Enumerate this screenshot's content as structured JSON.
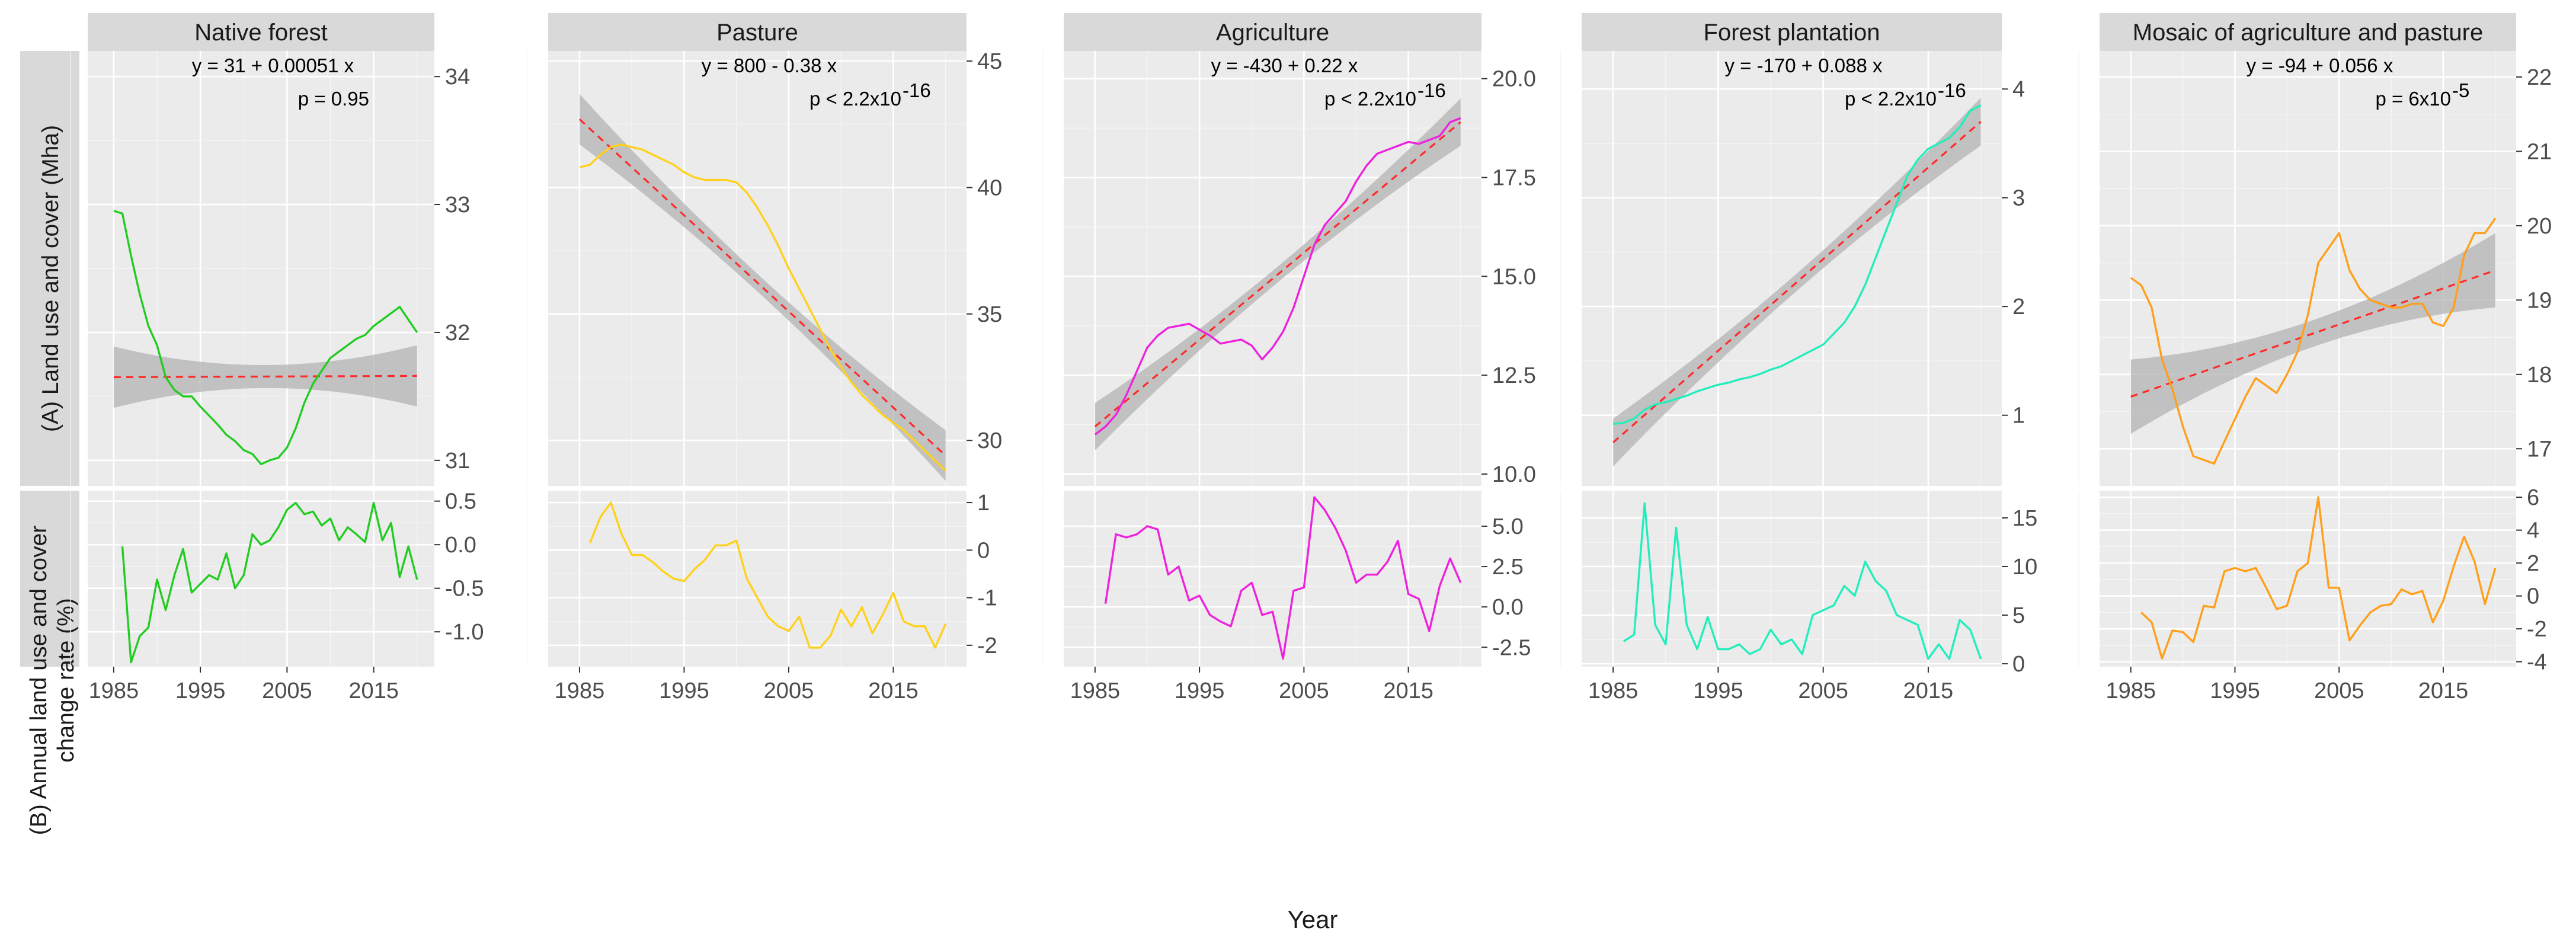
{
  "chart_data": {
    "type": "line",
    "xlabel": "Year",
    "row_labels": {
      "A": "(A) Land use and cover (Mha)",
      "B_line1": "(B) Annual land use and cover",
      "B_line2": "change rate (%)"
    },
    "x_ticks": [
      1985,
      1995,
      2005,
      2015
    ],
    "xlim": [
      1982,
      2022
    ],
    "grid": true,
    "panels": [
      {
        "name": "Native forest",
        "color": "#22cc22",
        "equation": "y = 31 + 0.00051 x",
        "p_prefix": "p = 0.95",
        "p_sup": "",
        "cover": {
          "ylim": [
            30.8,
            34.2
          ],
          "ticks": [
            "31",
            "32",
            "33",
            "34"
          ],
          "tick_values": [
            31,
            32,
            33,
            34
          ],
          "x": [
            1985,
            1986,
            1987,
            1988,
            1989,
            1990,
            1991,
            1992,
            1993,
            1994,
            1995,
            1996,
            1997,
            1998,
            1999,
            2000,
            2001,
            2002,
            2003,
            2004,
            2005,
            2006,
            2007,
            2008,
            2009,
            2010,
            2011,
            2012,
            2013,
            2014,
            2015,
            2016,
            2017,
            2018,
            2019,
            2020
          ],
          "values": [
            32.95,
            32.93,
            32.6,
            32.3,
            32.05,
            31.9,
            31.65,
            31.55,
            31.5,
            31.5,
            31.42,
            31.35,
            31.28,
            31.2,
            31.15,
            31.08,
            31.05,
            30.97,
            31.0,
            31.02,
            31.1,
            31.25,
            31.45,
            31.6,
            31.7,
            31.8,
            31.85,
            31.9,
            31.95,
            31.98,
            32.05,
            32.1,
            32.15,
            32.2,
            32.1,
            32.0
          ],
          "trend": {
            "start": 31.65,
            "end": 31.66,
            "band_hw_edge": 0.24,
            "band_hw_mid": 0.09
          }
        },
        "rate": {
          "ylim": [
            -1.4,
            0.62
          ],
          "ticks": [
            "-1.0",
            "-0.5",
            "0.0",
            "0.5"
          ],
          "tick_values": [
            -1.0,
            -0.5,
            0.0,
            0.5
          ],
          "x": [
            1986,
            1987,
            1988,
            1989,
            1990,
            1991,
            1992,
            1993,
            1994,
            1995,
            1996,
            1997,
            1998,
            1999,
            2000,
            2001,
            2002,
            2003,
            2004,
            2005,
            2006,
            2007,
            2008,
            2009,
            2010,
            2011,
            2012,
            2013,
            2014,
            2015,
            2016,
            2017,
            2018,
            2019,
            2020
          ],
          "values": [
            -0.02,
            -1.35,
            -1.05,
            -0.95,
            -0.4,
            -0.75,
            -0.35,
            -0.05,
            -0.55,
            -0.45,
            -0.35,
            -0.4,
            -0.1,
            -0.5,
            -0.35,
            0.12,
            0.0,
            0.05,
            0.2,
            0.4,
            0.48,
            0.35,
            0.38,
            0.22,
            0.3,
            0.05,
            0.2,
            0.12,
            0.03,
            0.48,
            0.05,
            0.25,
            -0.37,
            -0.02,
            -0.4
          ]
        }
      },
      {
        "name": "Pasture",
        "color": "#ffd11a",
        "equation": "y = 800 - 0.38 x",
        "p_prefix": "p < 2.2x10",
        "p_sup": "-16",
        "cover": {
          "ylim": [
            28.2,
            45.4
          ],
          "ticks": [
            "30",
            "35",
            "40",
            "45"
          ],
          "tick_values": [
            30,
            35,
            40,
            45
          ],
          "x": [
            1985,
            1986,
            1987,
            1988,
            1989,
            1990,
            1991,
            1992,
            1993,
            1994,
            1995,
            1996,
            1997,
            1998,
            1999,
            2000,
            2001,
            2002,
            2003,
            2004,
            2005,
            2006,
            2007,
            2008,
            2009,
            2010,
            2011,
            2012,
            2013,
            2014,
            2015,
            2016,
            2017,
            2018,
            2019,
            2020
          ],
          "values": [
            40.8,
            40.9,
            41.3,
            41.6,
            41.7,
            41.6,
            41.5,
            41.3,
            41.1,
            40.9,
            40.6,
            40.4,
            40.3,
            40.3,
            40.3,
            40.2,
            39.8,
            39.2,
            38.5,
            37.7,
            36.8,
            36.0,
            35.2,
            34.4,
            33.6,
            32.9,
            32.3,
            31.8,
            31.4,
            31.0,
            30.7,
            30.4,
            30.0,
            29.6,
            29.2,
            28.8
          ],
          "trend": {
            "start": 42.7,
            "end": 29.4,
            "band_hw_edge": 1.0,
            "band_hw_mid": 0.35
          }
        },
        "rate": {
          "ylim": [
            -2.45,
            1.25
          ],
          "ticks": [
            "-2",
            "-1",
            "0",
            "1"
          ],
          "tick_values": [
            -2,
            -1,
            0,
            1
          ],
          "x": [
            1986,
            1987,
            1988,
            1989,
            1990,
            1991,
            1992,
            1993,
            1994,
            1995,
            1996,
            1997,
            1998,
            1999,
            2000,
            2001,
            2002,
            2003,
            2004,
            2005,
            2006,
            2007,
            2008,
            2009,
            2010,
            2011,
            2012,
            2013,
            2014,
            2015,
            2016,
            2017,
            2018,
            2019,
            2020
          ],
          "values": [
            0.15,
            0.7,
            1.0,
            0.35,
            -0.1,
            -0.1,
            -0.25,
            -0.45,
            -0.6,
            -0.65,
            -0.4,
            -0.2,
            0.1,
            0.1,
            0.2,
            -0.6,
            -1.0,
            -1.4,
            -1.6,
            -1.7,
            -1.4,
            -2.05,
            -2.05,
            -1.8,
            -1.25,
            -1.6,
            -1.2,
            -1.75,
            -1.35,
            -0.9,
            -1.5,
            -1.6,
            -1.6,
            -2.05,
            -1.55
          ]
        }
      },
      {
        "name": "Agriculture",
        "color": "#ee22dd",
        "equation": "y = -430 + 0.22 x",
        "p_prefix": "p < 2.2x10",
        "p_sup": "-16",
        "cover": {
          "ylim": [
            9.7,
            20.7
          ],
          "ticks": [
            "10.0",
            "12.5",
            "15.0",
            "17.5",
            "20.0"
          ],
          "tick_values": [
            10.0,
            12.5,
            15.0,
            17.5,
            20.0
          ],
          "x": [
            1985,
            1986,
            1987,
            1988,
            1989,
            1990,
            1991,
            1992,
            1993,
            1994,
            1995,
            1996,
            1997,
            1998,
            1999,
            2000,
            2001,
            2002,
            2003,
            2004,
            2005,
            2006,
            2007,
            2008,
            2009,
            2010,
            2011,
            2012,
            2013,
            2014,
            2015,
            2016,
            2017,
            2018,
            2019,
            2020
          ],
          "values": [
            11.0,
            11.2,
            11.5,
            12.0,
            12.6,
            13.2,
            13.5,
            13.7,
            13.75,
            13.8,
            13.65,
            13.5,
            13.3,
            13.35,
            13.4,
            13.25,
            12.9,
            13.2,
            13.6,
            14.2,
            15.0,
            15.8,
            16.3,
            16.6,
            16.9,
            17.4,
            17.8,
            18.1,
            18.2,
            18.3,
            18.4,
            18.35,
            18.45,
            18.55,
            18.9,
            19.0
          ],
          "trend": {
            "start": 11.2,
            "end": 18.9,
            "band_hw_edge": 0.6,
            "band_hw_mid": 0.2
          }
        },
        "rate": {
          "ylim": [
            -3.7,
            7.2
          ],
          "ticks": [
            "-2.5",
            "0.0",
            "2.5",
            "5.0"
          ],
          "tick_values": [
            -2.5,
            0.0,
            2.5,
            5.0
          ],
          "x": [
            1986,
            1987,
            1988,
            1989,
            1990,
            1991,
            1992,
            1993,
            1994,
            1995,
            1996,
            1997,
            1998,
            1999,
            2000,
            2001,
            2002,
            2003,
            2004,
            2005,
            2006,
            2007,
            2008,
            2009,
            2010,
            2011,
            2012,
            2013,
            2014,
            2015,
            2016,
            2017,
            2018,
            2019,
            2020
          ],
          "values": [
            0.2,
            4.5,
            4.3,
            4.5,
            5.0,
            4.8,
            2.0,
            2.5,
            0.4,
            0.7,
            -0.5,
            -0.9,
            -1.2,
            1.0,
            1.5,
            -0.5,
            -0.3,
            -3.2,
            1.0,
            1.2,
            6.8,
            6.0,
            4.9,
            3.5,
            1.5,
            2.0,
            2.0,
            2.8,
            4.1,
            0.8,
            0.5,
            -1.5,
            1.3,
            3.0,
            1.5
          ]
        }
      },
      {
        "name": "Forest plantation",
        "color": "#22eebb",
        "equation": "y = -170 + 0.088 x",
        "p_prefix": "p < 2.2x10",
        "p_sup": "-16",
        "cover": {
          "ylim": [
            0.35,
            4.35
          ],
          "ticks": [
            "1",
            "2",
            "3",
            "4"
          ],
          "tick_values": [
            1,
            2,
            3,
            4
          ],
          "x": [
            1985,
            1986,
            1987,
            1988,
            1989,
            1990,
            1991,
            1992,
            1993,
            1994,
            1995,
            1996,
            1997,
            1998,
            1999,
            2000,
            2001,
            2002,
            2003,
            2004,
            2005,
            2006,
            2007,
            2008,
            2009,
            2010,
            2011,
            2012,
            2013,
            2014,
            2015,
            2016,
            2017,
            2018,
            2019,
            2020
          ],
          "values": [
            0.92,
            0.93,
            0.97,
            1.05,
            1.1,
            1.12,
            1.15,
            1.18,
            1.22,
            1.25,
            1.28,
            1.3,
            1.33,
            1.35,
            1.38,
            1.42,
            1.45,
            1.5,
            1.55,
            1.6,
            1.65,
            1.75,
            1.85,
            2.0,
            2.2,
            2.45,
            2.7,
            2.95,
            3.2,
            3.35,
            3.45,
            3.5,
            3.55,
            3.65,
            3.8,
            3.85
          ],
          "trend": {
            "start": 0.75,
            "end": 3.7,
            "band_hw_edge": 0.22,
            "band_hw_mid": 0.08
          }
        },
        "rate": {
          "ylim": [
            -0.3,
            17.8
          ],
          "ticks": [
            "0",
            "5",
            "10",
            "15"
          ],
          "tick_values": [
            0,
            5,
            10,
            15
          ],
          "x": [
            1986,
            1987,
            1988,
            1989,
            1990,
            1991,
            1992,
            1993,
            1994,
            1995,
            1996,
            1997,
            1998,
            1999,
            2000,
            2001,
            2002,
            2003,
            2004,
            2005,
            2006,
            2007,
            2008,
            2009,
            2010,
            2011,
            2012,
            2013,
            2014,
            2015,
            2016,
            2017,
            2018,
            2019,
            2020
          ],
          "values": [
            2.3,
            3.0,
            16.5,
            4.0,
            2.0,
            14.0,
            4.0,
            1.5,
            4.8,
            1.5,
            1.5,
            2.0,
            1.0,
            1.5,
            3.5,
            2.0,
            2.5,
            1.0,
            5.0,
            5.5,
            6.0,
            8.0,
            7.0,
            10.5,
            8.5,
            7.5,
            5.0,
            4.5,
            4.0,
            0.5,
            2.0,
            0.5,
            4.5,
            3.5,
            0.5
          ]
        }
      },
      {
        "name": "Mosaic of agriculture and pasture",
        "color": "#ff9f1a",
        "equation": "y = -94 + 0.056 x",
        "p_prefix": "p = 6x10",
        "p_sup": "-5",
        "cover": {
          "ylim": [
            16.5,
            22.35
          ],
          "ticks": [
            "17",
            "18",
            "19",
            "20",
            "21",
            "22"
          ],
          "tick_values": [
            17,
            18,
            19,
            20,
            21,
            22
          ],
          "x": [
            1985,
            1986,
            1987,
            1988,
            1989,
            1990,
            1991,
            1992,
            1993,
            1994,
            1995,
            1996,
            1997,
            1998,
            1999,
            2000,
            2001,
            2002,
            2003,
            2004,
            2005,
            2006,
            2007,
            2008,
            2009,
            2010,
            2011,
            2012,
            2013,
            2014,
            2015,
            2016,
            2017,
            2018,
            2019,
            2020
          ],
          "values": [
            19.3,
            19.2,
            18.9,
            18.2,
            17.8,
            17.3,
            16.9,
            16.85,
            16.8,
            17.1,
            17.4,
            17.7,
            17.95,
            17.85,
            17.75,
            18.0,
            18.3,
            18.8,
            19.5,
            19.7,
            19.9,
            19.4,
            19.15,
            19.0,
            18.95,
            18.9,
            18.9,
            18.95,
            18.95,
            18.7,
            18.65,
            18.9,
            19.6,
            19.9,
            19.9,
            20.1
          ],
          "trend": {
            "start": 17.7,
            "end": 19.4,
            "band_hw_edge": 0.5,
            "band_hw_mid": 0.18
          }
        },
        "rate": {
          "ylim": [
            -4.3,
            6.4
          ],
          "ticks": [
            "-4",
            "-2",
            "0",
            "2",
            "4",
            "6"
          ],
          "tick_values": [
            -4,
            -2,
            0,
            2,
            4,
            6
          ],
          "x": [
            1986,
            1987,
            1988,
            1989,
            1990,
            1991,
            1992,
            1993,
            1994,
            1995,
            1996,
            1997,
            1998,
            1999,
            2000,
            2001,
            2002,
            2003,
            2004,
            2005,
            2006,
            2007,
            2008,
            2009,
            2010,
            2011,
            2012,
            2013,
            2014,
            2015,
            2016,
            2017,
            2018,
            2019,
            2020
          ],
          "values": [
            -1.0,
            -1.6,
            -3.8,
            -2.1,
            -2.2,
            -2.8,
            -0.6,
            -0.7,
            1.5,
            1.7,
            1.5,
            1.7,
            0.5,
            -0.8,
            -0.6,
            1.5,
            2.0,
            6.0,
            0.5,
            0.5,
            -2.7,
            -1.8,
            -1.0,
            -0.6,
            -0.5,
            0.4,
            0.1,
            0.3,
            -1.6,
            -0.3,
            1.8,
            3.6,
            2.1,
            -0.5,
            1.7
          ]
        }
      }
    ]
  }
}
